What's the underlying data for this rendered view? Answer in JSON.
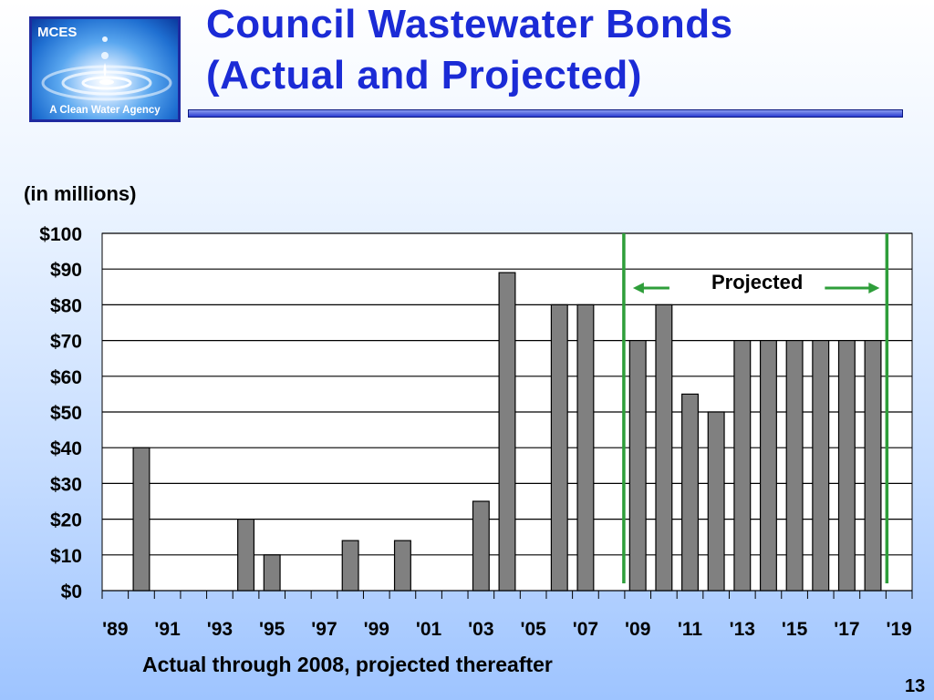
{
  "logo": {
    "name": "MCES",
    "tagline": "A Clean Water Agency"
  },
  "title": {
    "line1": "Council Wastewater Bonds",
    "line2": "(Actual and Projected)"
  },
  "unit_label": "(in millions)",
  "footer_note": "Actual through 2008, projected thereafter",
  "page_number": "13",
  "projected_label": "Projected",
  "colors": {
    "title": "#1b2bd6",
    "bar": "#808080",
    "projection_marker": "#2e9e3a"
  },
  "chart_data": {
    "type": "bar",
    "x": [
      "1989",
      "1990",
      "1991",
      "1992",
      "1993",
      "1994",
      "1995",
      "1996",
      "1997",
      "1998",
      "1999",
      "2000",
      "2001",
      "2002",
      "2003",
      "2004",
      "2005",
      "2006",
      "2007",
      "2008",
      "2009",
      "2010",
      "2011",
      "2012",
      "2013",
      "2014",
      "2015",
      "2016",
      "2017",
      "2018",
      "2019"
    ],
    "values": [
      0,
      40,
      0,
      0,
      0,
      20,
      10,
      0,
      0,
      14,
      0,
      14,
      0,
      0,
      25,
      89,
      0,
      80,
      80,
      0,
      70,
      80,
      55,
      50,
      70,
      70,
      70,
      70,
      70,
      70,
      0
    ],
    "tick_labels": [
      "'89",
      "'91",
      "'93",
      "'95",
      "'97",
      "'99",
      "'01",
      "'03",
      "'05",
      "'07",
      "'09",
      "'11",
      "'13",
      "'15",
      "'17",
      "'19"
    ],
    "y_tick_labels": [
      "$0",
      "$10",
      "$20",
      "$30",
      "$40",
      "$50",
      "$60",
      "$70",
      "$80",
      "$90",
      "$100"
    ],
    "ylim": [
      0,
      100
    ],
    "grid": true,
    "projection_start": "2009",
    "projection_end": "2019"
  }
}
